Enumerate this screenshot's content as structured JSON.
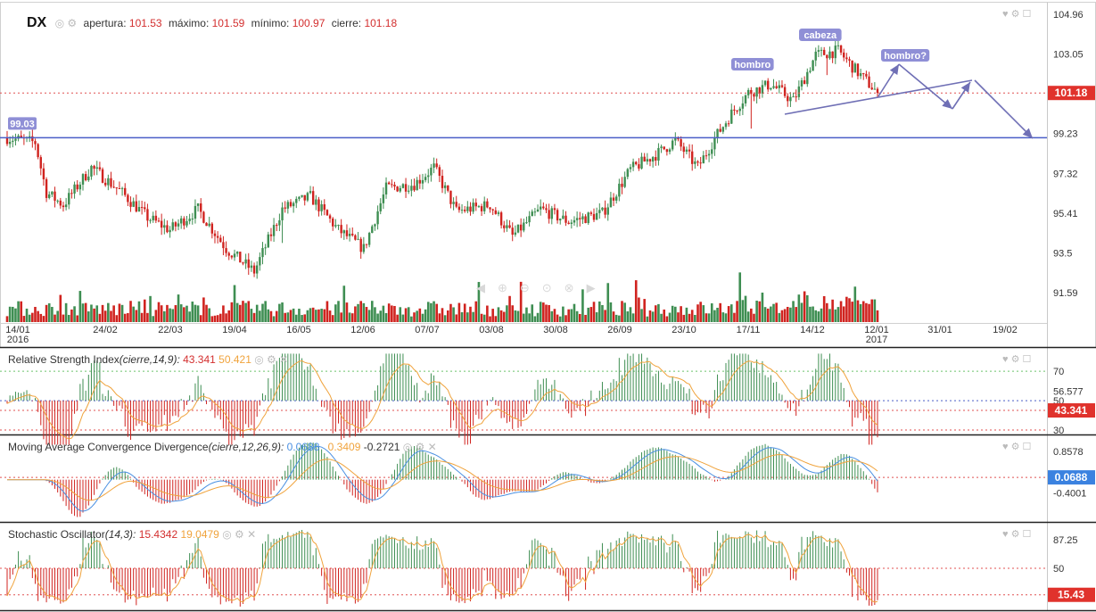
{
  "symbol": "DX",
  "colors": {
    "up": "#3e8e52",
    "down": "#d0231f",
    "line_blue": "#4a5ec7",
    "drawing": "#6f6fb5",
    "rsi_line": "#f0a33c",
    "macd_line": "#4a90e2",
    "signal_line": "#f0a33c",
    "stoch_k": "#f0a33c",
    "price_tag": "#e0322c",
    "grid_dotted_red": "#e05050",
    "grid_dotted_green": "#6cc36c"
  },
  "ohlc_header": {
    "open_label": "apertura:",
    "open": "101.53",
    "high_label": "máximo:",
    "high": "101.59",
    "low_label": "mínimo:",
    "low": "100.97",
    "close_label": "cierre:",
    "close": "101.18"
  },
  "annotations": {
    "level_tag": "99.03",
    "hombro_left": "hombro",
    "cabeza": "cabeza",
    "hombro_right": "hombro?"
  },
  "price_axis": {
    "ticks": [
      "104.96",
      "103.05",
      "99.23",
      "97.32",
      "95.41",
      "93.5",
      "91.59"
    ],
    "tick_values": [
      104.96,
      103.05,
      99.23,
      97.32,
      95.41,
      93.5,
      91.59
    ],
    "last_price_tag": "101.18",
    "last_price": 101.18
  },
  "time_axis": {
    "labels": [
      "14/01",
      "24/02",
      "22/03",
      "19/04",
      "16/05",
      "12/06",
      "07/07",
      "03/08",
      "30/08",
      "26/09",
      "23/10",
      "17/11",
      "14/12",
      "12/01",
      "31/01",
      "19/02"
    ],
    "year_labels": [
      "2016",
      "2017"
    ]
  },
  "rsi": {
    "title": "Relative Strength Index",
    "params": "(cierre,14,9):",
    "value": "43.341",
    "signal": "50.421",
    "ticks": [
      "70",
      "56.577",
      "50",
      "30"
    ],
    "tag": "43.341"
  },
  "macd": {
    "title": "Moving Average Convergence Divergence",
    "params": "(cierre,12,26,9):",
    "macd_value": "0.0688",
    "signal_value": "0.3409",
    "hist_value": "-0.2721",
    "ticks": [
      "0.8578",
      "-0.4001"
    ],
    "tag": "0.0688"
  },
  "stoch": {
    "title": "Stochastic Oscillator",
    "params": "(14,3):",
    "k_value": "15.4342",
    "d_value": "19.0479",
    "ticks": [
      "87.25",
      "50"
    ],
    "tag": "15.43"
  },
  "chart_data": {
    "type": "candlestick",
    "title": "DX",
    "price_range": [
      90.5,
      105.8
    ],
    "horizontal_level": 99.03,
    "last_close": 101.18,
    "x_range": [
      "14/01/2016",
      "19/02/2017"
    ],
    "key_points": [
      {
        "date": "14/01/2016",
        "close": 99.03
      },
      {
        "date": "02/2016",
        "close": 95.6
      },
      {
        "date": "19/04/2016",
        "close": 93.7
      },
      {
        "date": "05/2016",
        "close": 92.0
      },
      {
        "date": "07/07/2016",
        "close": 96.0
      },
      {
        "date": "03/08/2016",
        "close": 95.3
      },
      {
        "date": "26/09/2016",
        "close": 95.5
      },
      {
        "date": "23/10/2016",
        "close": 98.8
      },
      {
        "date": "17/11/2016",
        "close": 101.3
      },
      {
        "date": "14/12/2016",
        "close": 103.0
      },
      {
        "date": "12/01/2017",
        "close": 101.18
      }
    ],
    "rsi": {
      "last": 43.341,
      "signal": 50.421,
      "levels": [
        30,
        50,
        70
      ]
    },
    "macd": {
      "macd": 0.0688,
      "signal": 0.3409,
      "histogram": -0.2721
    },
    "stochastic": {
      "k": 15.4342,
      "d": 19.0479
    }
  }
}
